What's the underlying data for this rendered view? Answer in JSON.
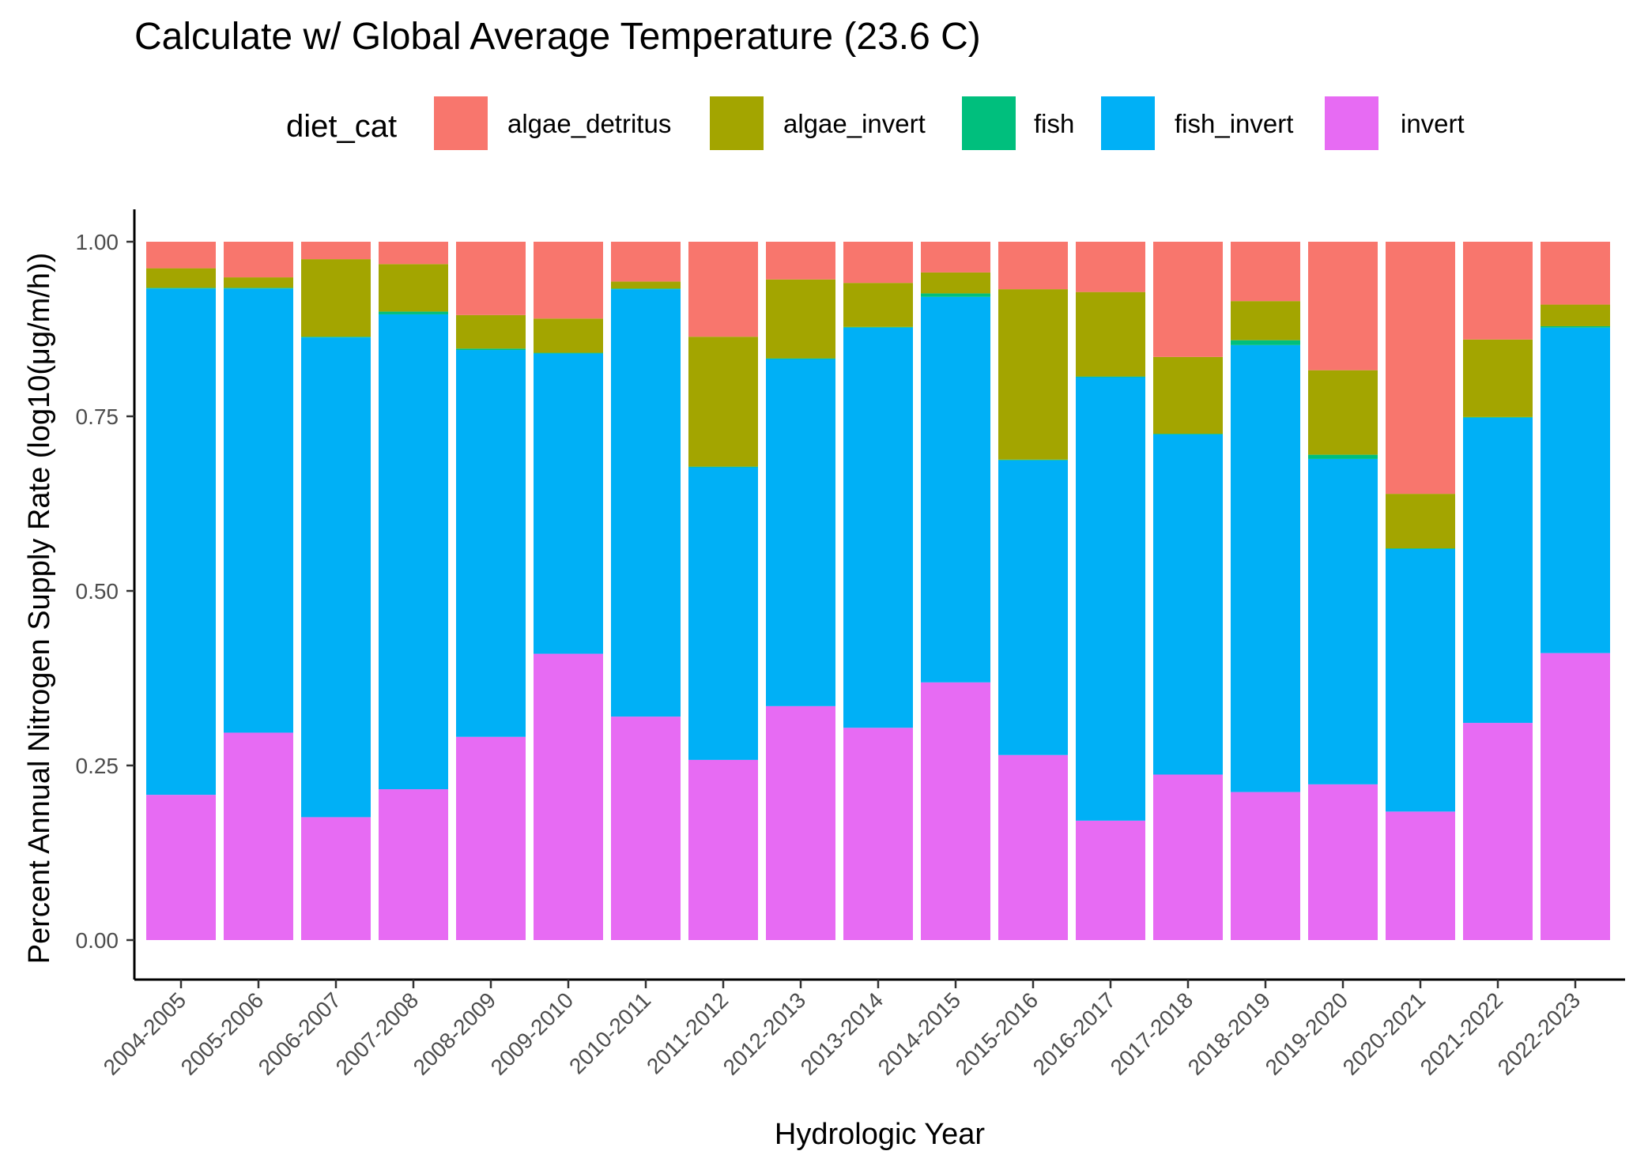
{
  "chart_data": {
    "type": "bar",
    "stacked": true,
    "title": "Calculate w/ Global Average Temperature (23.6 C)",
    "xlabel": "Hydrologic Year",
    "ylabel": "Percent Annual Nitrogen Supply Rate (log10(μg/m/h))",
    "ylim": [
      0,
      1
    ],
    "yticks": [
      "0.00",
      "0.25",
      "0.50",
      "0.75",
      "1.00"
    ],
    "ytick_values": [
      0,
      0.25,
      0.5,
      0.75,
      1.0
    ],
    "grid": false,
    "legend": {
      "title": "diet_cat",
      "position": "top"
    },
    "categories": [
      "2004-2005",
      "2005-2006",
      "2006-2007",
      "2007-2008",
      "2008-2009",
      "2009-2010",
      "2010-2011",
      "2011-2012",
      "2012-2013",
      "2013-2014",
      "2014-2015",
      "2015-2016",
      "2016-2017",
      "2017-2018",
      "2018-2019",
      "2019-2020",
      "2020-2021",
      "2021-2022",
      "2022-2023"
    ],
    "series": [
      {
        "name": "invert",
        "color": "#E76BF3",
        "values": [
          0.208,
          0.297,
          0.176,
          0.216,
          0.291,
          0.41,
          0.32,
          0.258,
          0.335,
          0.304,
          0.369,
          0.265,
          0.171,
          0.237,
          0.212,
          0.223,
          0.184,
          0.311,
          0.411
        ]
      },
      {
        "name": "fish_invert",
        "color": "#00B0F6",
        "values": [
          0.725,
          0.636,
          0.687,
          0.68,
          0.554,
          0.43,
          0.612,
          0.419,
          0.497,
          0.573,
          0.552,
          0.422,
          0.635,
          0.487,
          0.64,
          0.466,
          0.376,
          0.437,
          0.466
        ]
      },
      {
        "name": "fish",
        "color": "#00BF7D",
        "values": [
          0.001,
          0.001,
          0.001,
          0.004,
          0.002,
          0.001,
          0.001,
          0.001,
          0.001,
          0.001,
          0.005,
          0.001,
          0.001,
          0.001,
          0.007,
          0.006,
          0.001,
          0.001,
          0.002
        ]
      },
      {
        "name": "algae_invert",
        "color": "#A3A500",
        "values": [
          0.028,
          0.015,
          0.111,
          0.068,
          0.048,
          0.049,
          0.01,
          0.186,
          0.113,
          0.063,
          0.03,
          0.244,
          0.121,
          0.11,
          0.056,
          0.121,
          0.078,
          0.111,
          0.031
        ]
      },
      {
        "name": "algae_detritus",
        "color": "#F8766D",
        "values": [
          0.038,
          0.051,
          0.025,
          0.032,
          0.105,
          0.11,
          0.057,
          0.136,
          0.054,
          0.059,
          0.044,
          0.068,
          0.072,
          0.165,
          0.085,
          0.184,
          0.361,
          0.14,
          0.09
        ]
      }
    ],
    "legend_order": [
      "algae_detritus",
      "algae_invert",
      "fish",
      "fish_invert",
      "invert"
    ]
  }
}
